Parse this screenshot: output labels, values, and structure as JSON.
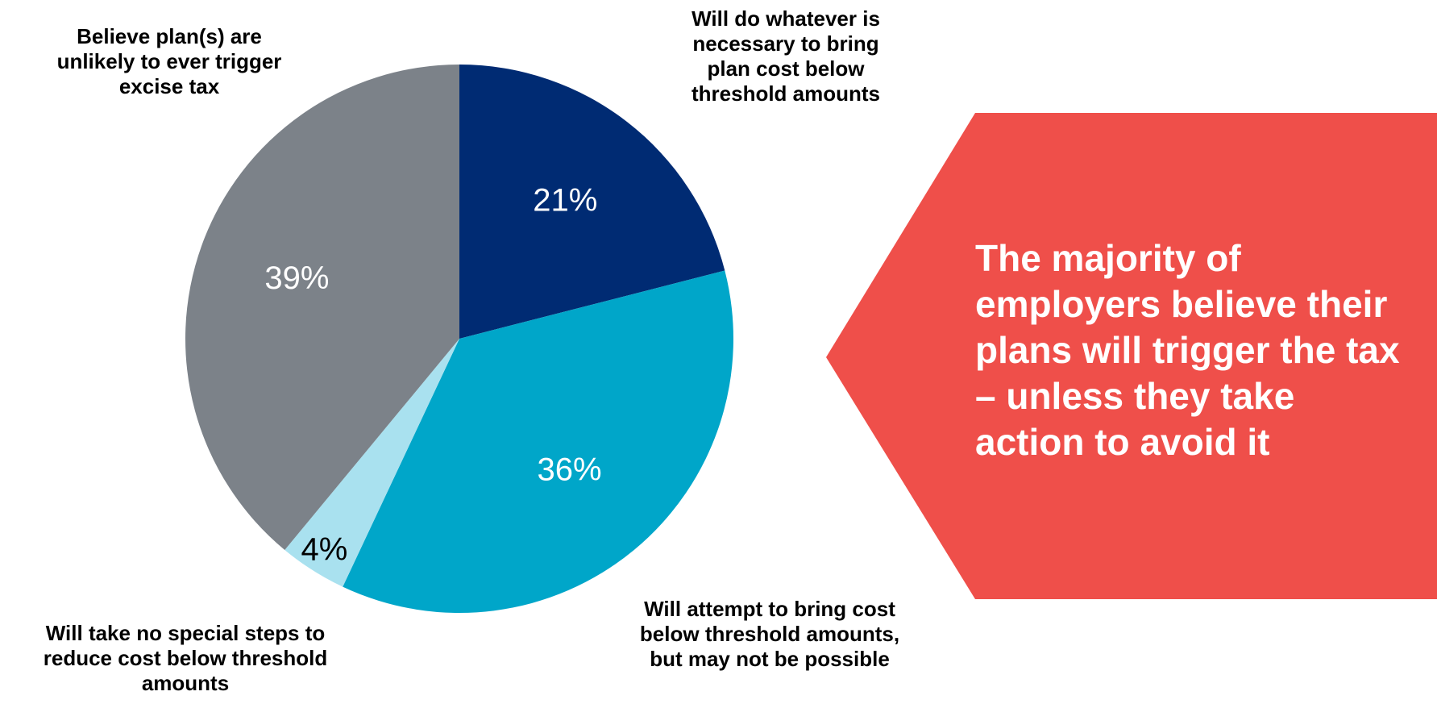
{
  "chart_data": {
    "type": "pie",
    "slices": [
      {
        "label": "Will do whatever is\nnecessary to bring\nplan cost below\nthreshold amounts",
        "value": 21,
        "value_label": "21%",
        "color": "#002b73",
        "label_color": "#ffffff"
      },
      {
        "label": "Will attempt to bring cost\nbelow threshold amounts,\nbut may not be possible",
        "value": 36,
        "value_label": "36%",
        "color": "#00a6c9",
        "label_color": "#ffffff"
      },
      {
        "label": "Will take no special steps to\nreduce cost below threshold\namounts",
        "value": 4,
        "value_label": "4%",
        "color": "#a9e1ef",
        "label_color": "#000000"
      },
      {
        "label": "Believe plan(s) are\nunlikely to ever trigger\nexcise tax",
        "value": 39,
        "value_label": "39%",
        "color": "#7c8289",
        "label_color": "#ffffff"
      }
    ],
    "start_angle_deg": 0,
    "direction": "clockwise"
  },
  "callout": {
    "text": "The majority of\nemployers believe their\nplans will trigger the tax\n– unless they take\naction to avoid it",
    "color": "#ef4f4a",
    "text_color": "#ffffff"
  }
}
